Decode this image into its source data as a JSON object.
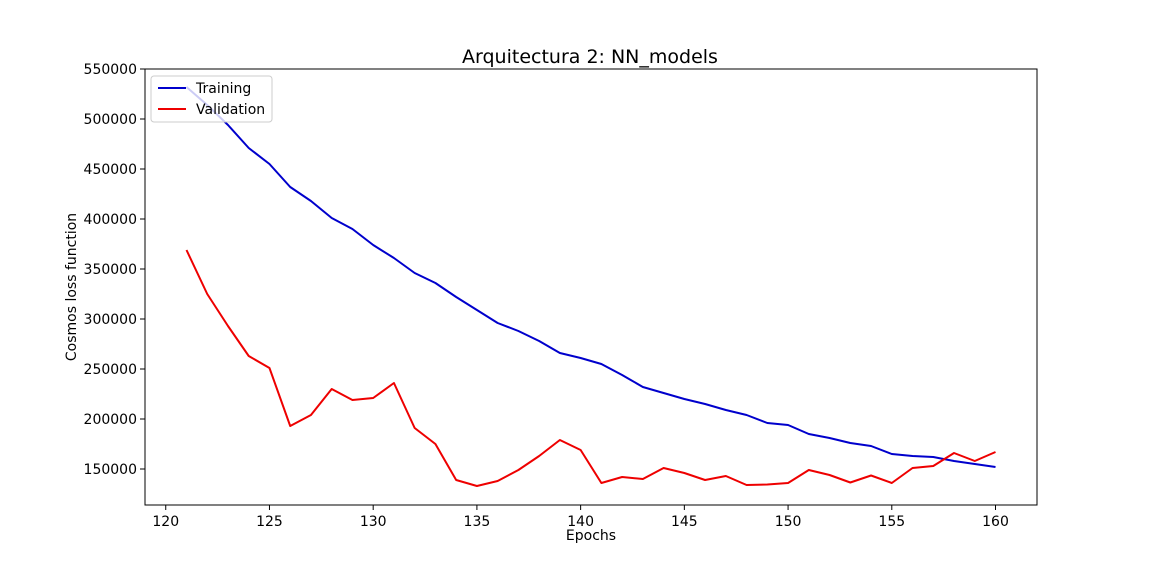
{
  "chart_data": {
    "type": "line",
    "title": "Arquitectura 2: NN_models",
    "xlabel": "Epochs",
    "ylabel": "Cosmos loss function",
    "xlim": [
      119,
      162
    ],
    "ylim": [
      114000,
      550000
    ],
    "xticks": [
      120,
      125,
      130,
      135,
      140,
      145,
      150,
      155,
      160
    ],
    "yticks": [
      150000,
      200000,
      250000,
      300000,
      350000,
      400000,
      450000,
      500000,
      550000
    ],
    "grid": false,
    "legend_position": "upper left",
    "x": [
      121,
      122,
      123,
      124,
      125,
      126,
      127,
      128,
      129,
      130,
      131,
      132,
      133,
      134,
      135,
      136,
      137,
      138,
      139,
      140,
      141,
      142,
      143,
      144,
      145,
      146,
      147,
      148,
      149,
      150,
      151,
      152,
      153,
      154,
      155,
      156,
      157,
      158,
      159,
      160
    ],
    "series": [
      {
        "name": "Training",
        "color": "#0000cc",
        "values": [
          532000,
          514000,
          494000,
          471000,
          455000,
          432000,
          418000,
          401000,
          390000,
          374000,
          361000,
          346000,
          336000,
          322000,
          309000,
          296000,
          288000,
          278000,
          266000,
          261000,
          255000,
          244000,
          232000,
          226000,
          220000,
          215000,
          209000,
          204000,
          196000,
          194000,
          185000,
          181000,
          176000,
          173000,
          165000,
          163000,
          162000,
          158000,
          155000,
          152000
        ]
      },
      {
        "name": "Validation",
        "color": "#ee0000",
        "values": [
          369000,
          325000,
          293000,
          263000,
          251000,
          193000,
          204000,
          230000,
          219000,
          221000,
          236000,
          191000,
          175000,
          139000,
          133000,
          138000,
          149000,
          163000,
          179000,
          169000,
          136000,
          142000,
          140000,
          151000,
          146000,
          139000,
          143000,
          134000,
          134500,
          136000,
          149000,
          144000,
          136500,
          143500,
          136000,
          151000,
          153000,
          166000,
          158000,
          167000
        ]
      }
    ]
  }
}
